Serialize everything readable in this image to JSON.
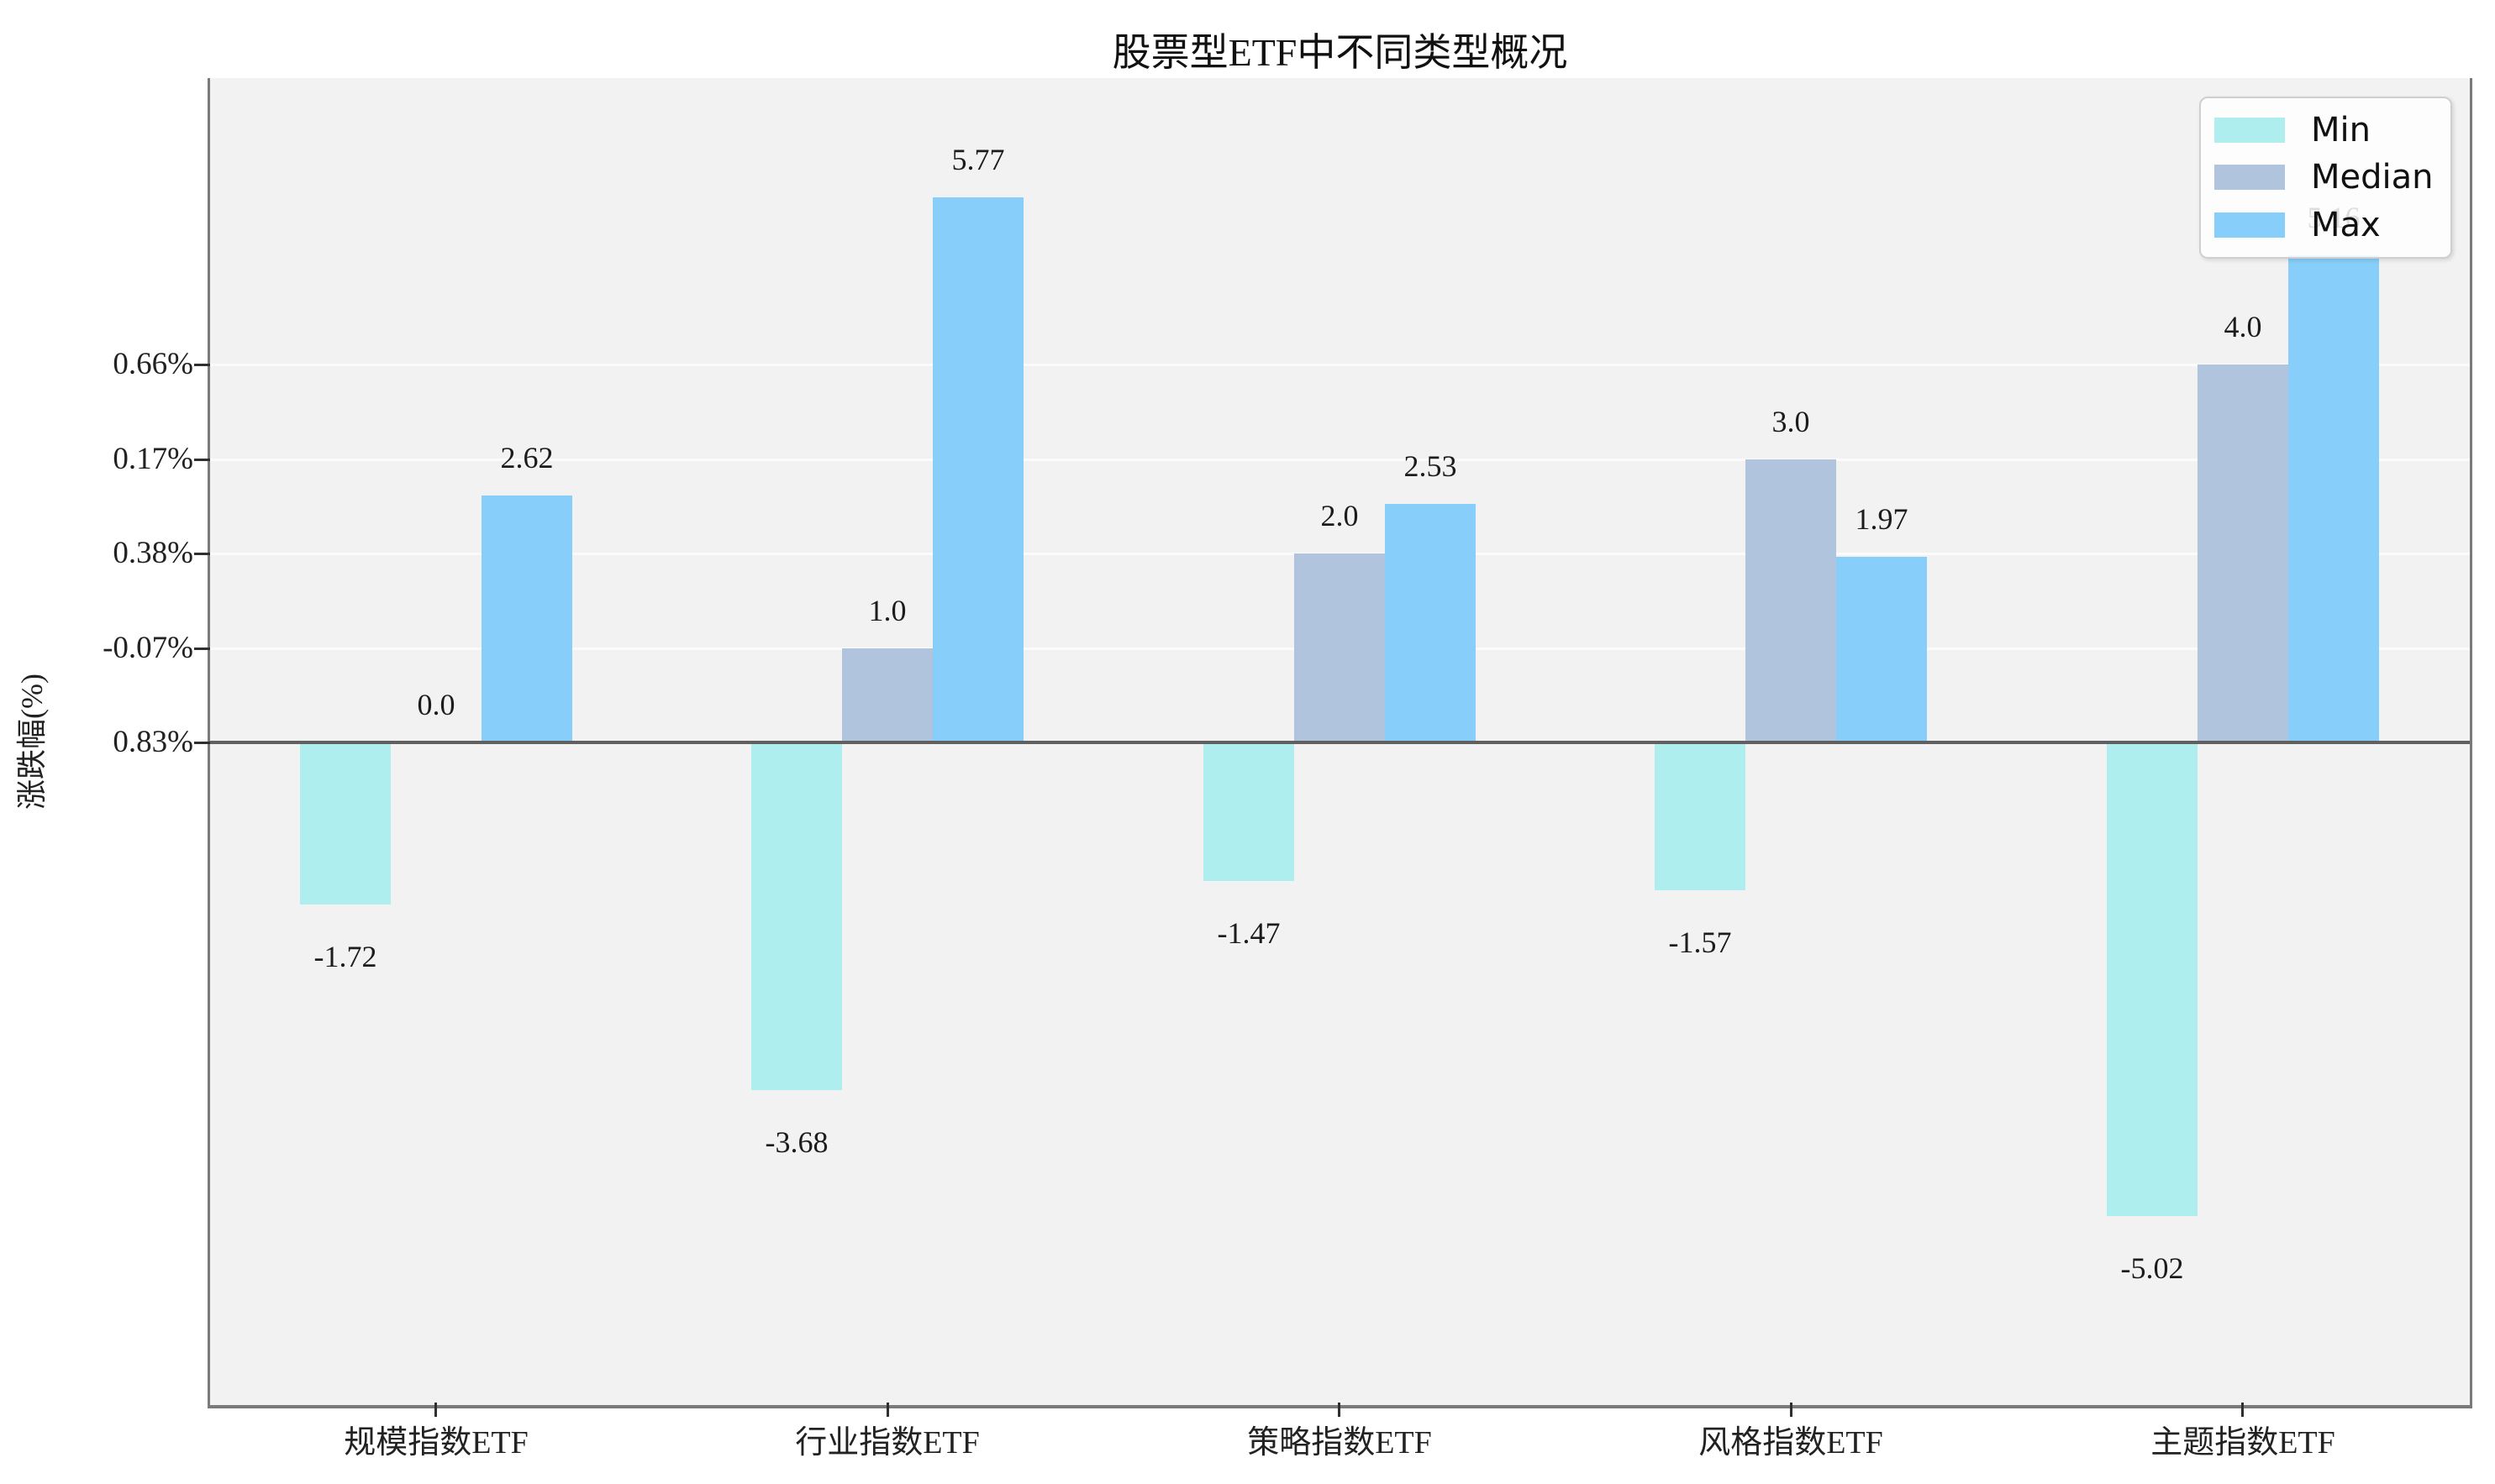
{
  "title": "股票型ETF中不同类型概况",
  "y_axis": {
    "label": "涨跌幅(%)",
    "tick_labels_top_to_bottom": [
      "0.66%",
      "0.17%",
      "0.38%",
      "-0.07%",
      "0.83%"
    ]
  },
  "legend": {
    "entries": [
      {
        "label": "Min",
        "color": "#AFEEEE"
      },
      {
        "label": "Median",
        "color": "#B0C4DE"
      },
      {
        "label": "Max",
        "color": "#87CEFA"
      }
    ],
    "position": "upper right"
  },
  "colors": {
    "min": "#AFEEEE",
    "median": "#B0C4DE",
    "max": "#87CEFA",
    "plot_background": "#f2f2f2",
    "gridline": "#fbfbfb",
    "spine": "#7a7a7a",
    "zero_line": "#606060"
  },
  "chart_data": {
    "type": "bar",
    "title": "股票型ETF中不同类型概况",
    "xlabel": "",
    "ylabel": "涨跌幅(%)",
    "categories": [
      "规模指数ETF",
      "行业指数ETF",
      "策略指数ETF",
      "风格指数ETF",
      "主题指数ETF"
    ],
    "series": [
      {
        "name": "Min",
        "color": "#AFEEEE",
        "values": [
          -1.72,
          -3.68,
          -1.47,
          -1.57,
          -5.02
        ],
        "labels": [
          "-1.72",
          "-3.68",
          "-1.47",
          "-1.57",
          "-5.02"
        ]
      },
      {
        "name": "Median",
        "color": "#B0C4DE",
        "values": [
          0.0,
          1.0,
          2.0,
          3.0,
          4.0
        ],
        "labels": [
          "0.0",
          "1.0",
          "2.0",
          "3.0",
          "4.0"
        ]
      },
      {
        "name": "Max",
        "color": "#87CEFA",
        "values": [
          2.62,
          5.77,
          2.53,
          1.97,
          5.16
        ],
        "labels": [
          "2.62",
          "5.77",
          "2.53",
          "1.97",
          "5.16"
        ]
      }
    ],
    "ylim": [
      -7.0,
      7.0
    ],
    "grid": "horizontal, white, above zero only",
    "legend_position": "upper right",
    "notes": "y tick labels are percentages that do not increase monotonically; 5.16 label is partially hidden behind legend"
  }
}
